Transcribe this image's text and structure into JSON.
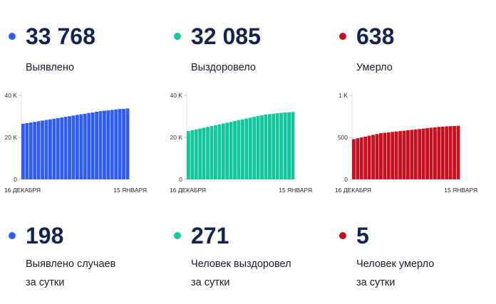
{
  "panels": [
    {
      "total": "33 768",
      "total_label": "Выявлено",
      "daily": "198",
      "daily_label_line1": "Выявлено случаев",
      "daily_label_line2": "за сутки",
      "color": "#2f5cf5"
    },
    {
      "total": "32 085",
      "total_label": "Выздоровело",
      "daily": "271",
      "daily_label_line1": "Человек выздоровел",
      "daily_label_line2": "за сутки",
      "color": "#12c79c"
    },
    {
      "total": "638",
      "total_label": "Умерло",
      "daily": "5",
      "daily_label_line1": "Человек умерло",
      "daily_label_line2": "за сутки",
      "color": "#c8101e"
    }
  ],
  "chart_data": [
    {
      "type": "bar",
      "x_start_label": "16 ДЕКАБРЯ",
      "x_end_label": "15 ЯНВАРЯ",
      "yticks": [
        "40 K",
        "20 K",
        "0"
      ],
      "ylim": [
        0,
        40000
      ],
      "color": "#2f5cf5",
      "values": [
        26500,
        26800,
        27100,
        27400,
        27700,
        28000,
        28300,
        28600,
        28900,
        29200,
        29500,
        29800,
        30100,
        30400,
        30700,
        31000,
        31300,
        31600,
        31900,
        32200,
        32500,
        32700,
        32900,
        33100,
        33300,
        33500,
        33600,
        33768
      ]
    },
    {
      "type": "bar",
      "x_start_label": "16 ДЕКАБРЯ",
      "x_end_label": "15 ЯНВАРЯ",
      "yticks": [
        "40 K",
        "20 K",
        "0"
      ],
      "ylim": [
        0,
        40000
      ],
      "color": "#12c79c",
      "values": [
        23000,
        23400,
        23800,
        24200,
        24600,
        25000,
        25400,
        25800,
        26200,
        26600,
        27000,
        27400,
        27800,
        28200,
        28600,
        29000,
        29400,
        29800,
        30200,
        30500,
        30800,
        31100,
        31300,
        31500,
        31700,
        31850,
        31970,
        32085
      ]
    },
    {
      "type": "bar",
      "x_start_label": "16 ДЕКАБРЯ",
      "x_end_label": "15 ЯНВАРЯ",
      "yticks": [
        "1 K",
        "500",
        "0"
      ],
      "ylim": [
        0,
        1000
      ],
      "color": "#c8101e",
      "values": [
        480,
        490,
        500,
        510,
        520,
        530,
        540,
        550,
        555,
        560,
        565,
        570,
        575,
        580,
        585,
        590,
        595,
        600,
        605,
        610,
        615,
        620,
        625,
        628,
        631,
        634,
        636,
        638
      ]
    }
  ]
}
